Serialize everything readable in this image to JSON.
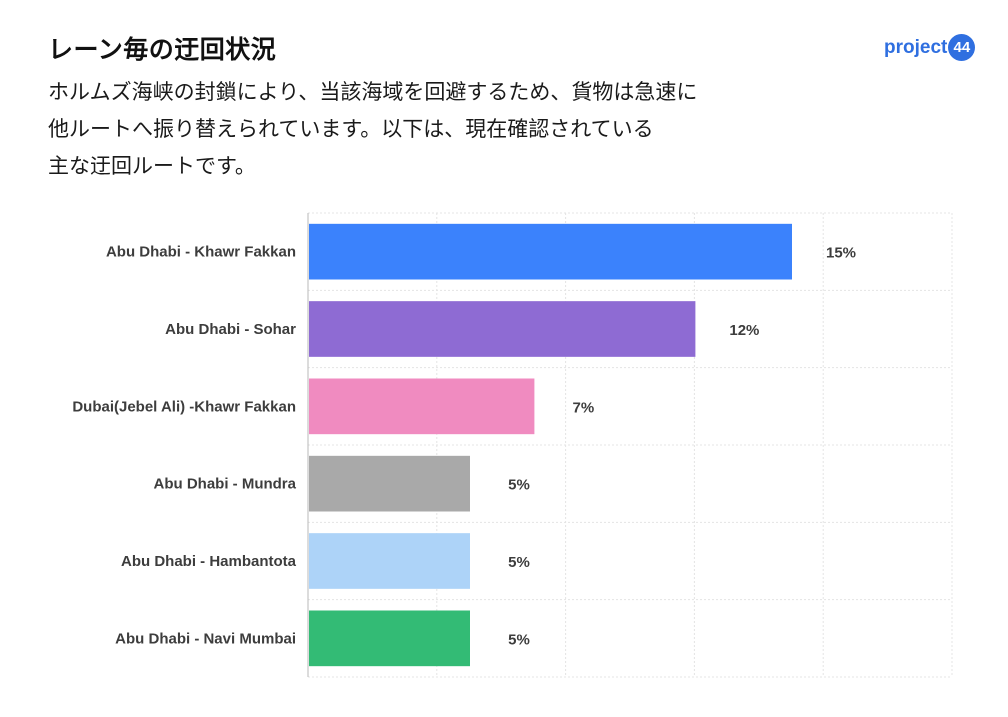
{
  "header": {
    "title": "レーン毎の迂回状況",
    "subtitle_lines": [
      "ホルムズ海峡の封鎖により、当該海域を回避するため、貨物は急速に",
      "他ルートへ振り替えられています。以下は、現在確認されている",
      "主な迂回ルートです。"
    ]
  },
  "logo": {
    "text": "project",
    "badge": "44"
  },
  "colors": {
    "blue": "#3b82fc",
    "purple": "#8e6bd3",
    "pink": "#f08bc0",
    "gray": "#a9a9a9",
    "lightblue": "#add3f8",
    "green": "#33bb75"
  },
  "chart_data": {
    "type": "bar",
    "orientation": "horizontal",
    "categories": [
      "Abu Dhabi - Khawr Fakkan",
      "Abu Dhabi - Sohar",
      "Dubai(Jebel Ali) -Khawr Fakkan",
      "Abu Dhabi - Mundra",
      "Abu Dhabi - Hambantota",
      "Abu Dhabi -  Navi Mumbai"
    ],
    "values": [
      15,
      12,
      7,
      5,
      5,
      5
    ],
    "value_labels": [
      "15%",
      "12%",
      "7%",
      "5%",
      "5%",
      "5%"
    ],
    "bar_colors": [
      "#3b82fc",
      "#8e6bd3",
      "#f08bc0",
      "#a9a9a9",
      "#add3f8",
      "#33bb75"
    ],
    "xlim": [
      0,
      20
    ],
    "grid": true
  }
}
